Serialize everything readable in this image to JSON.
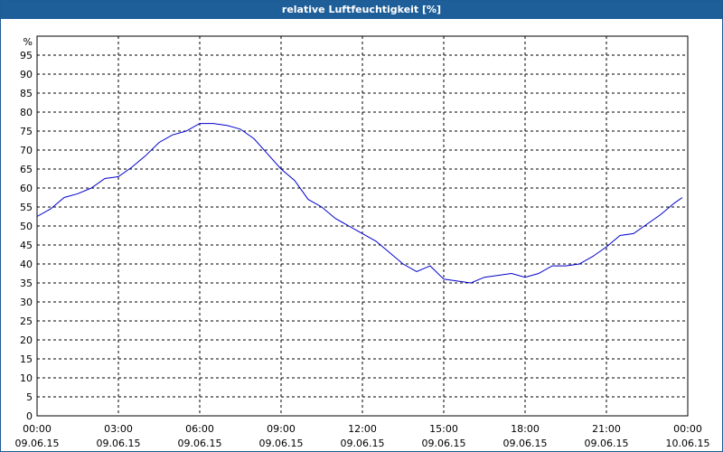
{
  "window": {
    "title": "relative Luftfeuchtigkeit [%]"
  },
  "chart_data": {
    "type": "line",
    "title": "relative Luftfeuchtigkeit [%]",
    "ylabel": "%",
    "xlabel": "",
    "ylim": [
      0,
      100
    ],
    "y_ticks": [
      0,
      5,
      10,
      15,
      20,
      25,
      30,
      35,
      40,
      45,
      50,
      55,
      60,
      65,
      70,
      75,
      80,
      85,
      90,
      95
    ],
    "x_tick_labels": [
      {
        "time": "00:00",
        "date": "09.06.15"
      },
      {
        "time": "03:00",
        "date": "09.06.15"
      },
      {
        "time": "06:00",
        "date": "09.06.15"
      },
      {
        "time": "09:00",
        "date": "09.06.15"
      },
      {
        "time": "12:00",
        "date": "09.06.15"
      },
      {
        "time": "15:00",
        "date": "09.06.15"
      },
      {
        "time": "18:00",
        "date": "09.06.15"
      },
      {
        "time": "21:00",
        "date": "09.06.15"
      },
      {
        "time": "00:00",
        "date": "10.06.15"
      }
    ],
    "grid": true,
    "line_color": "#0000cc",
    "series": [
      {
        "x_hours": [
          0,
          0.5,
          1,
          1.5,
          2,
          2.5,
          3,
          3.5,
          4,
          4.5,
          5,
          5.5,
          6,
          6.5,
          7,
          7.5,
          8,
          8.5,
          9,
          9.5,
          10,
          10.5,
          11,
          11.5,
          12,
          12.5,
          13,
          13.5,
          14,
          14.5,
          15,
          15.5,
          16,
          16.5,
          17,
          17.5,
          18,
          18.5,
          19,
          19.5,
          20,
          20.5,
          21,
          21.5,
          22,
          22.5,
          23,
          23.5,
          23.8
        ],
        "values": [
          52.5,
          54.5,
          57.5,
          58.5,
          60,
          62.5,
          63,
          65.5,
          68.5,
          72,
          74,
          75,
          77,
          77,
          76.5,
          75.5,
          73,
          69,
          65,
          62,
          57,
          55,
          52,
          50,
          48,
          46,
          43,
          40,
          38,
          39.5,
          36,
          35.5,
          35,
          36.5,
          37,
          37.5,
          36.5,
          37.5,
          39.5,
          39.5,
          40,
          42,
          44.5,
          47.5,
          48,
          50.5,
          53,
          56,
          57.5
        ]
      }
    ]
  }
}
